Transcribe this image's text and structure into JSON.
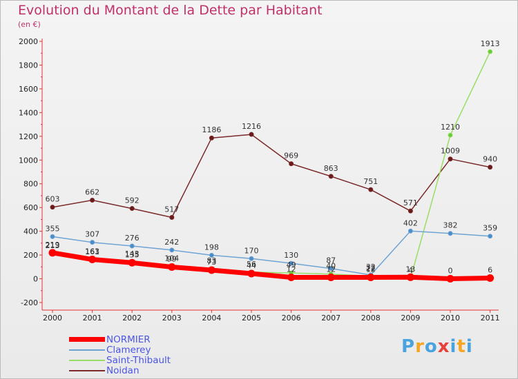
{
  "title": "Evolution du Montant de la Dette par Habitant",
  "unit_label": "(en €)",
  "chart_data": {
    "type": "line",
    "x": [
      "2000",
      "2001",
      "2002",
      "2003",
      "2004",
      "2005",
      "2006",
      "2007",
      "2008",
      "2009",
      "2010",
      "2011"
    ],
    "ylim": [
      -200,
      2000
    ],
    "yticks": [
      -200,
      0,
      200,
      400,
      600,
      800,
      1000,
      1200,
      1400,
      1600,
      1800,
      2000
    ],
    "grid": false,
    "legend_position": "bottom-left",
    "series": [
      {
        "name": "NORMIER",
        "color": "#ff0000",
        "values": [
          219,
          163,
          135,
          99,
          73,
          44,
          12,
          12,
          12,
          13,
          0,
          6
        ],
        "labels": [
          "219",
          "163",
          "135",
          "99",
          "73",
          "44",
          "12",
          "12",
          "12",
          "13",
          "0",
          "6"
        ]
      },
      {
        "name": "Clamerey",
        "color": "#6fa3d4",
        "values": [
          355,
          307,
          276,
          242,
          198,
          170,
          130,
          87,
          32,
          402,
          382,
          359
        ],
        "labels": [
          "355",
          "307",
          "276",
          "242",
          "198",
          "170",
          "130",
          "87",
          "32",
          "402",
          "382",
          "359"
        ]
      },
      {
        "name": "Saint-Thibault",
        "color": "#99dd66",
        "values": [
          213,
          161,
          143,
          104,
          83,
          56,
          49,
          40,
          22,
          4,
          1210,
          1913
        ],
        "labels": [
          "213",
          "161",
          "143",
          "104",
          "83",
          "56",
          "49",
          "40",
          "22",
          "4",
          "1210",
          "1913"
        ]
      },
      {
        "name": "Noidan",
        "color": "#7a2a2a",
        "values": [
          603,
          662,
          592,
          517,
          1186,
          1216,
          969,
          863,
          751,
          571,
          1009,
          940
        ],
        "labels": [
          "603",
          "662",
          "592",
          "517",
          "1186",
          "1216",
          "969",
          "863",
          "751",
          "571",
          "1009",
          "940"
        ]
      }
    ]
  },
  "logo": {
    "text": "Proxiti",
    "letter_colors": [
      "#4aa3df",
      "#f5a623",
      "#4aa3df",
      "#e8403a",
      "#4aa3df",
      "#f5a623",
      "#4aa3df"
    ]
  }
}
